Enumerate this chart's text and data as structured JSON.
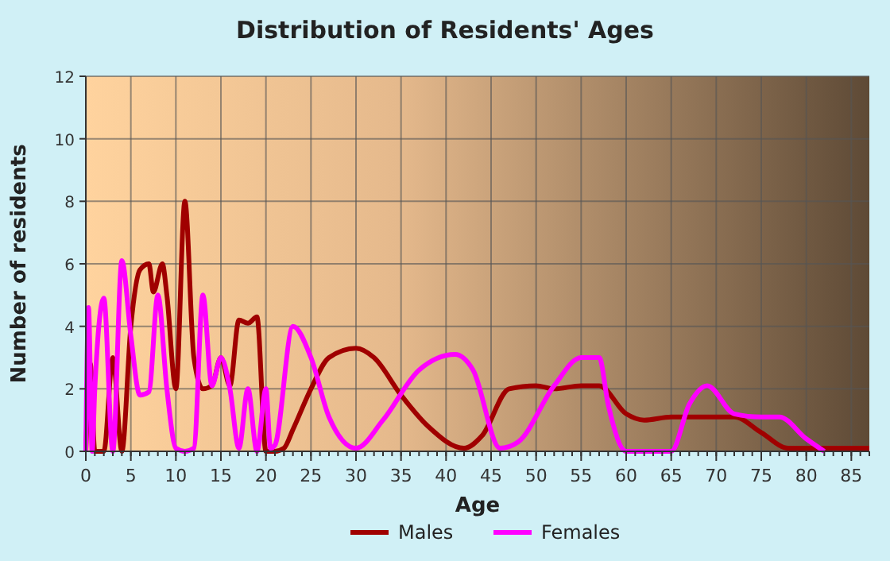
{
  "chart_data": {
    "type": "line",
    "title": "Distribution of Residents' Ages",
    "xlabel": "Age",
    "ylabel": "Number of residents",
    "xlim": [
      0,
      87
    ],
    "xticks": [
      0,
      5,
      10,
      15,
      20,
      25,
      30,
      35,
      40,
      45,
      50,
      55,
      60,
      65,
      70,
      75,
      80,
      85
    ],
    "ylim": [
      0,
      12
    ],
    "yticks": [
      0,
      2,
      4,
      6,
      8,
      10,
      12
    ],
    "grid": true,
    "legend": "bottom",
    "series": [
      {
        "name": "Males",
        "color": "#a00000",
        "x": [
          0,
          0.5,
          1,
          2,
          3,
          4,
          5,
          6,
          7,
          7.5,
          8.5,
          9,
          10,
          11,
          12,
          13,
          14,
          15,
          16,
          17,
          18,
          19,
          20,
          21,
          22,
          23,
          25,
          27,
          30,
          32,
          35,
          38,
          42,
          44,
          47,
          50,
          52,
          55,
          57,
          60,
          62,
          65,
          70,
          72,
          75,
          78,
          80,
          85,
          87
        ],
        "values": [
          0,
          2.8,
          0,
          0,
          3,
          0,
          4,
          5.8,
          6,
          5.1,
          6,
          5,
          2,
          8,
          3,
          2,
          2.1,
          3,
          2.1,
          4.2,
          4.1,
          4.3,
          0,
          0,
          0.1,
          0.7,
          2,
          3,
          3.3,
          3,
          1.8,
          0.8,
          0.1,
          0.5,
          2,
          2.1,
          2,
          2.1,
          2.1,
          1.2,
          1,
          1.1,
          1.1,
          1.1,
          0.6,
          0.1,
          0.1,
          0.1,
          0.1
        ]
      },
      {
        "name": "Females",
        "color": "#ff00ff",
        "x": [
          0,
          0.3,
          0.7,
          1,
          2,
          3,
          4,
          5,
          6,
          7,
          8,
          9,
          10,
          11,
          12,
          13,
          14,
          15,
          16,
          17,
          18,
          19,
          20,
          20.5,
          21,
          23,
          25,
          27,
          30,
          33,
          37,
          41,
          43,
          46,
          48,
          52,
          55,
          57,
          58,
          60,
          65,
          67,
          69,
          72,
          75,
          77,
          80,
          82
        ],
        "values": [
          0,
          4.6,
          0,
          2,
          4.9,
          0,
          6.1,
          3.7,
          1.8,
          1.9,
          5,
          2,
          0.1,
          0,
          0.1,
          5,
          2.1,
          3,
          2,
          0.1,
          2,
          0,
          2,
          0.1,
          0.2,
          4,
          3,
          1.1,
          0.1,
          1,
          2.6,
          3.1,
          2.6,
          0.1,
          0.3,
          2.1,
          3,
          3,
          1.5,
          0,
          0,
          1.5,
          2.1,
          1.2,
          1.1,
          1.1,
          0.4,
          0
        ]
      }
    ]
  }
}
